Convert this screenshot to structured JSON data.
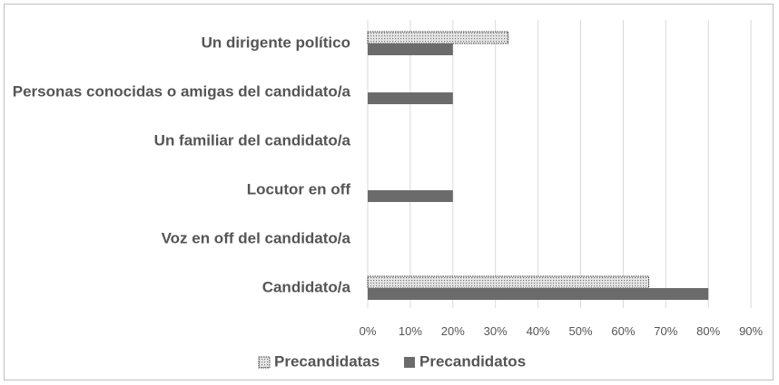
{
  "chart_data": {
    "type": "bar",
    "orientation": "horizontal",
    "categories": [
      "Un dirigente político",
      "Personas conocidas o amigas del candidato/a",
      "Un familiar del candidato/a",
      "Locutor en off",
      "Voz en off del candidato/a",
      "Candidato/a"
    ],
    "series": [
      {
        "name": "Precandidatas",
        "values": [
          33,
          0,
          0,
          0,
          0,
          66
        ],
        "color": "#d9d9d9",
        "pattern": "dotted"
      },
      {
        "name": "Precandidatos",
        "values": [
          20,
          20,
          0,
          20,
          0,
          80
        ],
        "color": "#6b6b6b",
        "pattern": "solid"
      }
    ],
    "x_ticks": [
      "0%",
      "10%",
      "20%",
      "30%",
      "40%",
      "50%",
      "60%",
      "70%",
      "80%",
      "90%"
    ],
    "xlim": [
      0,
      90
    ],
    "grid": true,
    "legend_position": "bottom"
  }
}
